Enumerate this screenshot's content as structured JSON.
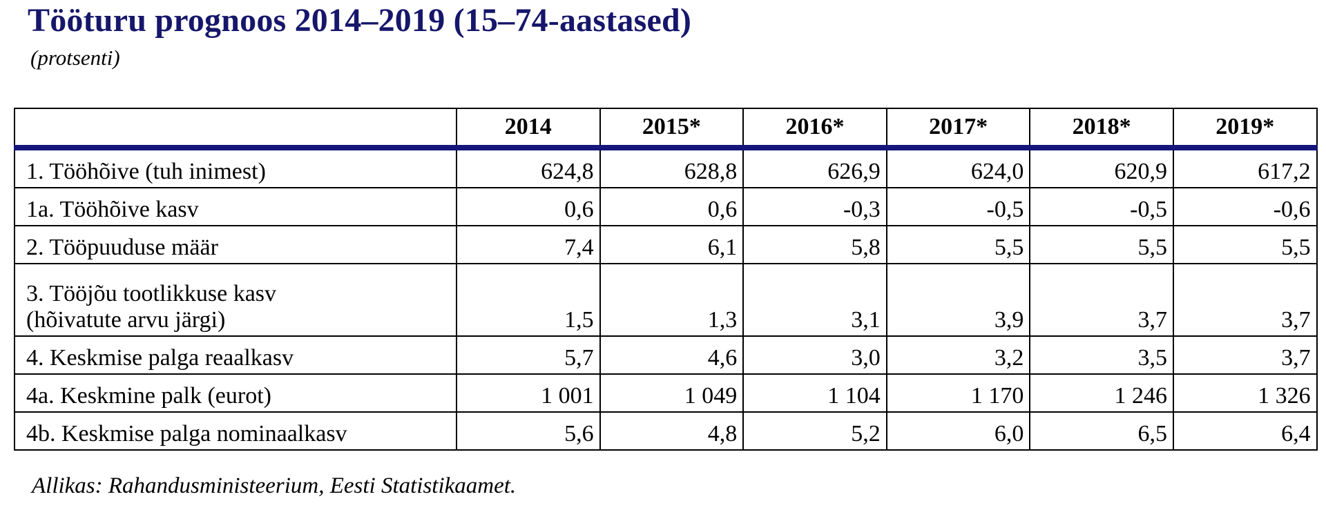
{
  "document": {
    "title": "Tööturu prognoos 2014–2019 (15–74-aastased)",
    "subtitle": "(protsenti)",
    "source": "Allikas: Rahandusministeerium, Eesti Statistikaamet."
  },
  "colors": {
    "title": "#16166b",
    "header_rule": "#15157a"
  },
  "table": {
    "corner": "",
    "columns": [
      "2014",
      "2015*",
      "2016*",
      "2017*",
      "2018*",
      "2019*"
    ],
    "rows": [
      {
        "label": "1. Tööhõive (tuh inimest)",
        "values": [
          "624,8",
          "628,8",
          "626,9",
          "624,0",
          "620,9",
          "617,2"
        ]
      },
      {
        "label": "1a. Tööhõive kasv",
        "values": [
          "0,6",
          "0,6",
          "-0,3",
          "-0,5",
          "-0,5",
          "-0,6"
        ]
      },
      {
        "label": "2. Tööpuuduse määr",
        "values": [
          "7,4",
          "6,1",
          "5,8",
          "5,5",
          "5,5",
          "5,5"
        ]
      },
      {
        "label_line1": "3. Tööjõu tootlikkuse kasv",
        "label_line2": "(hõivatute arvu järgi)",
        "values": [
          "1,5",
          "1,3",
          "3,1",
          "3,9",
          "3,7",
          "3,7"
        ]
      },
      {
        "label": "4. Keskmise palga reaalkasv",
        "values": [
          "5,7",
          "4,6",
          "3,0",
          "3,2",
          "3,5",
          "3,7"
        ]
      },
      {
        "label": "4a. Keskmine palk (eurot)",
        "values": [
          "1 001",
          "1 049",
          "1 104",
          "1 170",
          "1 246",
          "1 326"
        ]
      },
      {
        "label": "4b. Keskmise palga nominaalkasv",
        "values": [
          "5,6",
          "4,8",
          "5,2",
          "6,0",
          "6,5",
          "6,4"
        ]
      }
    ]
  }
}
